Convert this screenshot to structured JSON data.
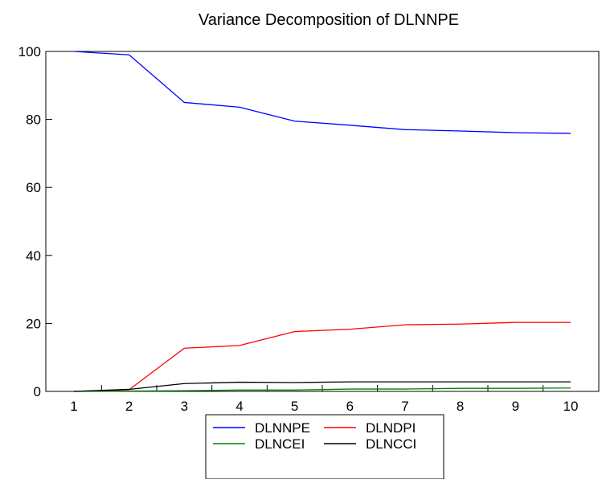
{
  "chart_data": {
    "type": "line",
    "title": "Variance Decomposition of DLNNPE",
    "xlabel": "",
    "ylabel": "",
    "x": [
      1,
      2,
      3,
      4,
      5,
      6,
      7,
      8,
      9,
      10
    ],
    "ylim": [
      0,
      100
    ],
    "yticks": [
      0,
      20,
      40,
      60,
      80,
      100
    ],
    "grid": false,
    "legend": "bottom",
    "series": [
      {
        "name": "DLNNPE",
        "color": "#0000ff",
        "values": [
          100,
          99.0,
          85.0,
          83.6,
          79.5,
          78.3,
          77.0,
          76.6,
          76.1,
          75.9
        ]
      },
      {
        "name": "DLNDPI",
        "color": "#ff0000",
        "values": [
          0,
          0.5,
          12.7,
          13.5,
          17.6,
          18.3,
          19.6,
          19.8,
          20.3,
          20.3
        ]
      },
      {
        "name": "DLNCEI",
        "color": "#008000",
        "values": [
          0,
          0.1,
          0.2,
          0.4,
          0.4,
          0.7,
          0.7,
          0.9,
          0.9,
          1.0
        ]
      },
      {
        "name": "DLNCCI",
        "color": "#000000",
        "values": [
          0,
          0.6,
          2.3,
          2.7,
          2.6,
          2.8,
          2.8,
          2.8,
          2.8,
          2.8
        ]
      }
    ]
  }
}
